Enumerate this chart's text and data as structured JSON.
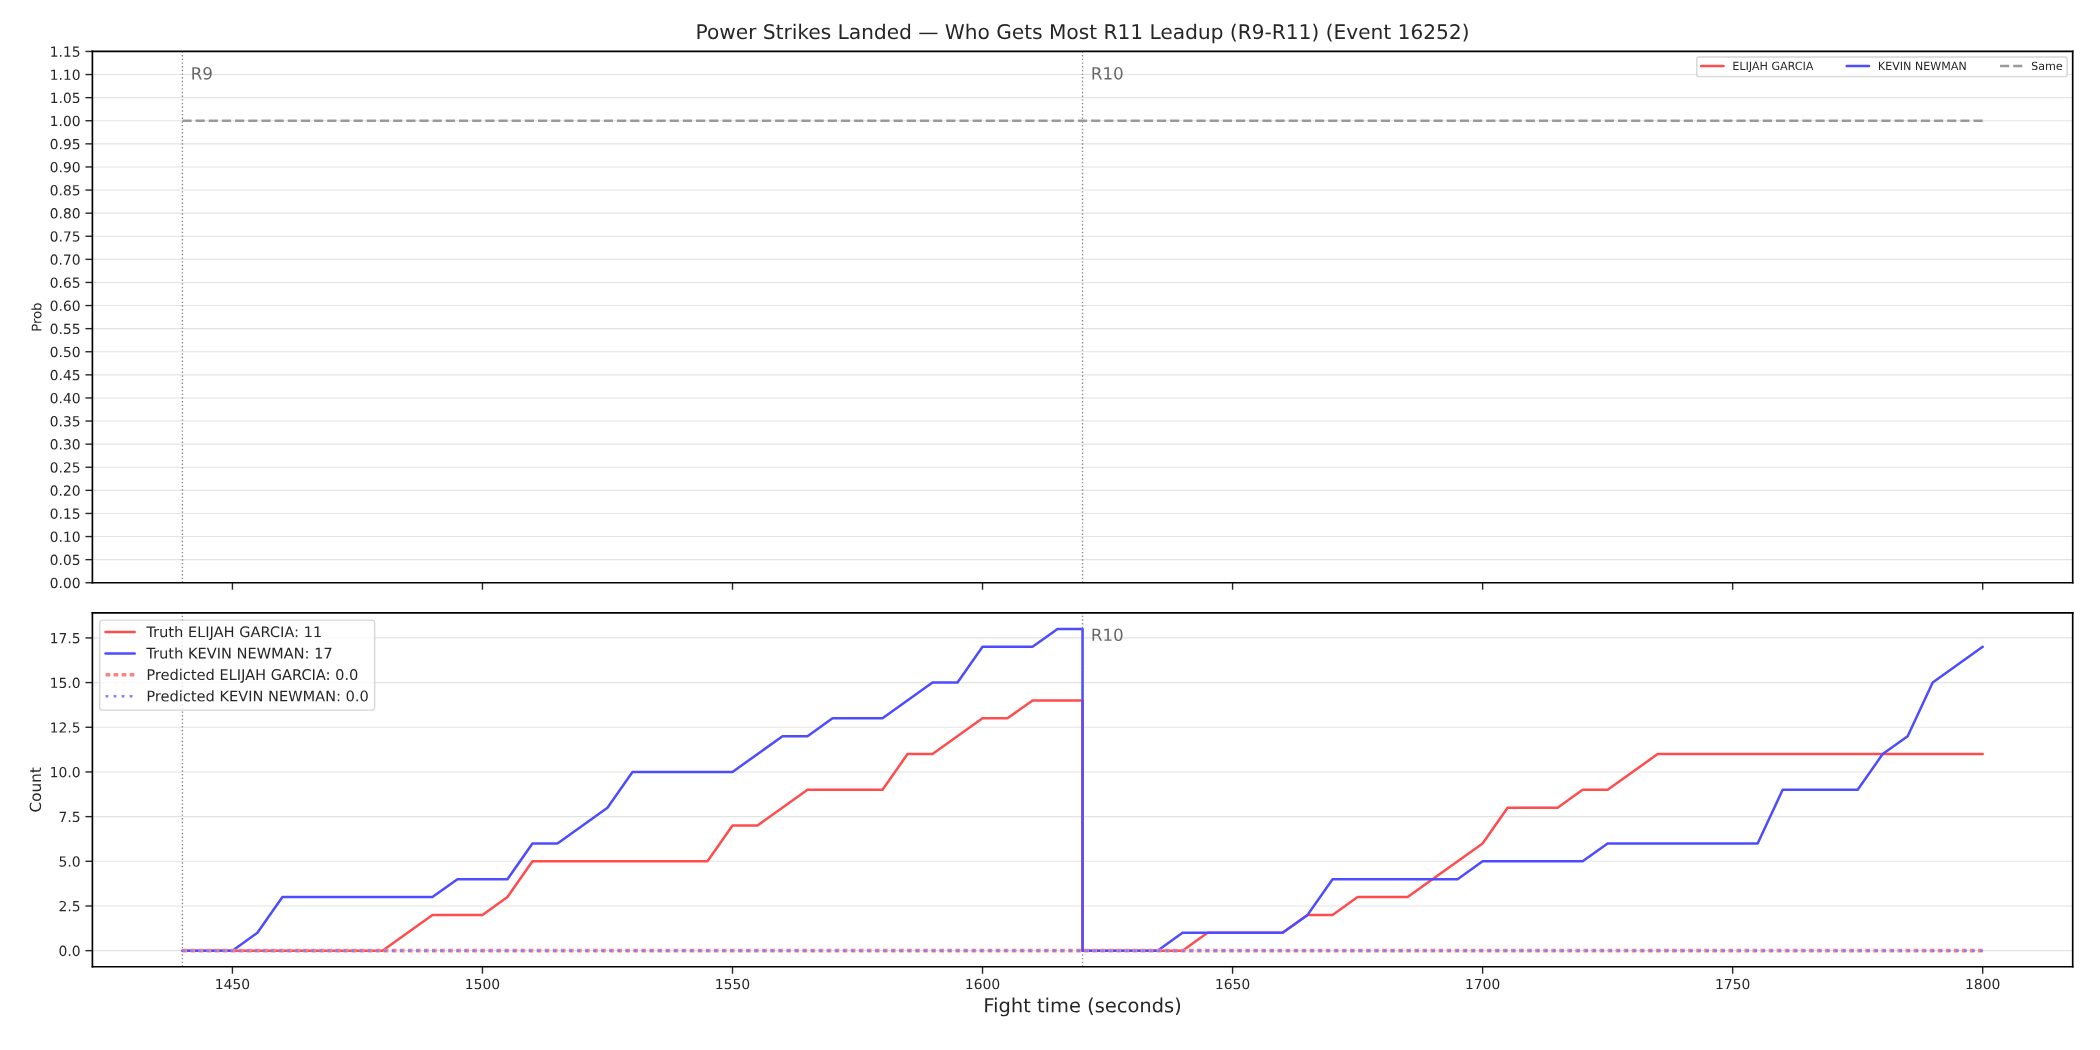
{
  "chart_data": [
    {
      "type": "line",
      "title": "Power Strikes Landed — Who Gets Most R11 Leadup (R9-R11) (Event 16252)",
      "ylabel": "Prob",
      "xlim": [
        1422,
        1818
      ],
      "xticks": [
        1450,
        1500,
        1550,
        1600,
        1650,
        1700,
        1750,
        1800
      ],
      "ylim": [
        0,
        1.15
      ],
      "yticks": [
        {
          "value": 0,
          "label": "0.00"
        },
        0.05,
        {
          "value": 0.1,
          "label": "0.10"
        },
        0.15,
        {
          "value": 0.2,
          "label": "0.20"
        },
        0.25,
        {
          "value": 0.3,
          "label": "0.30"
        },
        0.35,
        {
          "value": 0.4,
          "label": "0.40"
        },
        0.45,
        {
          "value": 0.5,
          "label": "0.50"
        },
        0.55,
        {
          "value": 0.6,
          "label": "0.60"
        },
        0.65,
        {
          "value": 0.7,
          "label": "0.70"
        },
        0.75,
        {
          "value": 0.8,
          "label": "0.80"
        },
        0.85,
        {
          "value": 0.9,
          "label": "0.90"
        },
        0.95,
        {
          "value": 1,
          "label": "1.00"
        },
        1.05,
        {
          "value": 1.1,
          "label": "1.10"
        },
        1.15
      ],
      "tick_labels": "y",
      "grid": "y",
      "legend": "top right",
      "ref_lines": [
        {
          "axis": "x",
          "value": 1440,
          "label": "R9",
          "color": "#888888",
          "line_style": "dotted"
        },
        {
          "axis": "x",
          "value": 1620,
          "label": "R10",
          "color": "#888888",
          "line_style": "dotted"
        }
      ],
      "series": [
        {
          "name": "ELIJAH GARCIA",
          "color": "#ff4d4d"
        },
        {
          "name": "KEVIN NEWMAN",
          "color": "#4d4dff"
        },
        {
          "name": "Same",
          "color": "#999999",
          "line_style": "dashed",
          "x": [
            1440,
            1800
          ],
          "values": [
            1,
            1
          ]
        }
      ]
    },
    {
      "type": "line",
      "xlabel": "Fight time (seconds)",
      "ylabel": "Count",
      "xlim": [
        1422,
        1818
      ],
      "xticks": [
        1450,
        1500,
        1550,
        1600,
        1650,
        1700,
        1750,
        1800
      ],
      "ylim": [
        -0.9,
        18.9
      ],
      "yticks": [
        {
          "value": 0,
          "label": "0.0"
        },
        2.5,
        {
          "value": 5,
          "label": "5.0"
        },
        7.5,
        {
          "value": 10,
          "label": "10.0"
        },
        12.5,
        {
          "value": 15,
          "label": "15.0"
        },
        17.5
      ],
      "grid": "y",
      "legend": "top left",
      "ref_lines": [
        {
          "axis": "x",
          "value": 1440,
          "color": "#888888",
          "line_style": "dotted"
        },
        {
          "axis": "x",
          "value": 1620,
          "label": "R10",
          "color": "#888888",
          "line_style": "dotted"
        }
      ],
      "series": [
        {
          "name": "Truth ELIJAH GARCIA: 11",
          "color": "#ff4d4d",
          "x": [
            1440,
            1480,
            1490,
            1500,
            1505,
            1510,
            1545,
            1550,
            1555,
            1565,
            1580,
            1585,
            1590,
            1600,
            1605,
            1610,
            1620,
            1620,
            1640,
            1645,
            1660,
            1665,
            1670,
            1675,
            1685,
            1700,
            1705,
            1715,
            1720,
            1725,
            1735,
            1800
          ],
          "values": [
            0,
            0,
            2,
            2,
            3,
            5,
            5,
            7,
            7,
            9,
            9,
            11,
            11,
            13,
            13,
            14,
            14,
            0,
            0,
            1,
            1,
            2,
            2,
            3,
            3,
            6,
            8,
            8,
            9,
            9,
            11,
            11
          ]
        },
        {
          "name": "Truth KEVIN NEWMAN: 17",
          "color": "#4d4dff",
          "x": [
            1440,
            1450,
            1455,
            1460,
            1490,
            1495,
            1505,
            1510,
            1515,
            1525,
            1530,
            1550,
            1560,
            1565,
            1570,
            1580,
            1590,
            1595,
            1600,
            1610,
            1615,
            1620,
            1620,
            1635,
            1640,
            1660,
            1665,
            1670,
            1695,
            1700,
            1720,
            1725,
            1755,
            1760,
            1775,
            1780,
            1785,
            1790,
            1800
          ],
          "values": [
            0,
            0,
            1,
            3,
            3,
            4,
            4,
            6,
            6,
            8,
            10,
            10,
            12,
            12,
            13,
            13,
            15,
            15,
            17,
            17,
            18,
            18,
            0,
            0,
            1,
            1,
            2,
            4,
            4,
            5,
            5,
            6,
            6,
            9,
            9,
            11,
            12,
            15,
            17
          ]
        },
        {
          "name": "Predicted ELIJAH GARCIA: 0.0",
          "color": "#ff8080",
          "line_style": "dotted",
          "x": [
            1440,
            1800
          ],
          "values": [
            0,
            0
          ]
        },
        {
          "name": "Predicted KEVIN NEWMAN: 0.0",
          "color": "#8080ff",
          "line_style": "dotted",
          "x": [
            1440,
            1800
          ],
          "values": [
            0,
            0
          ]
        }
      ]
    }
  ]
}
